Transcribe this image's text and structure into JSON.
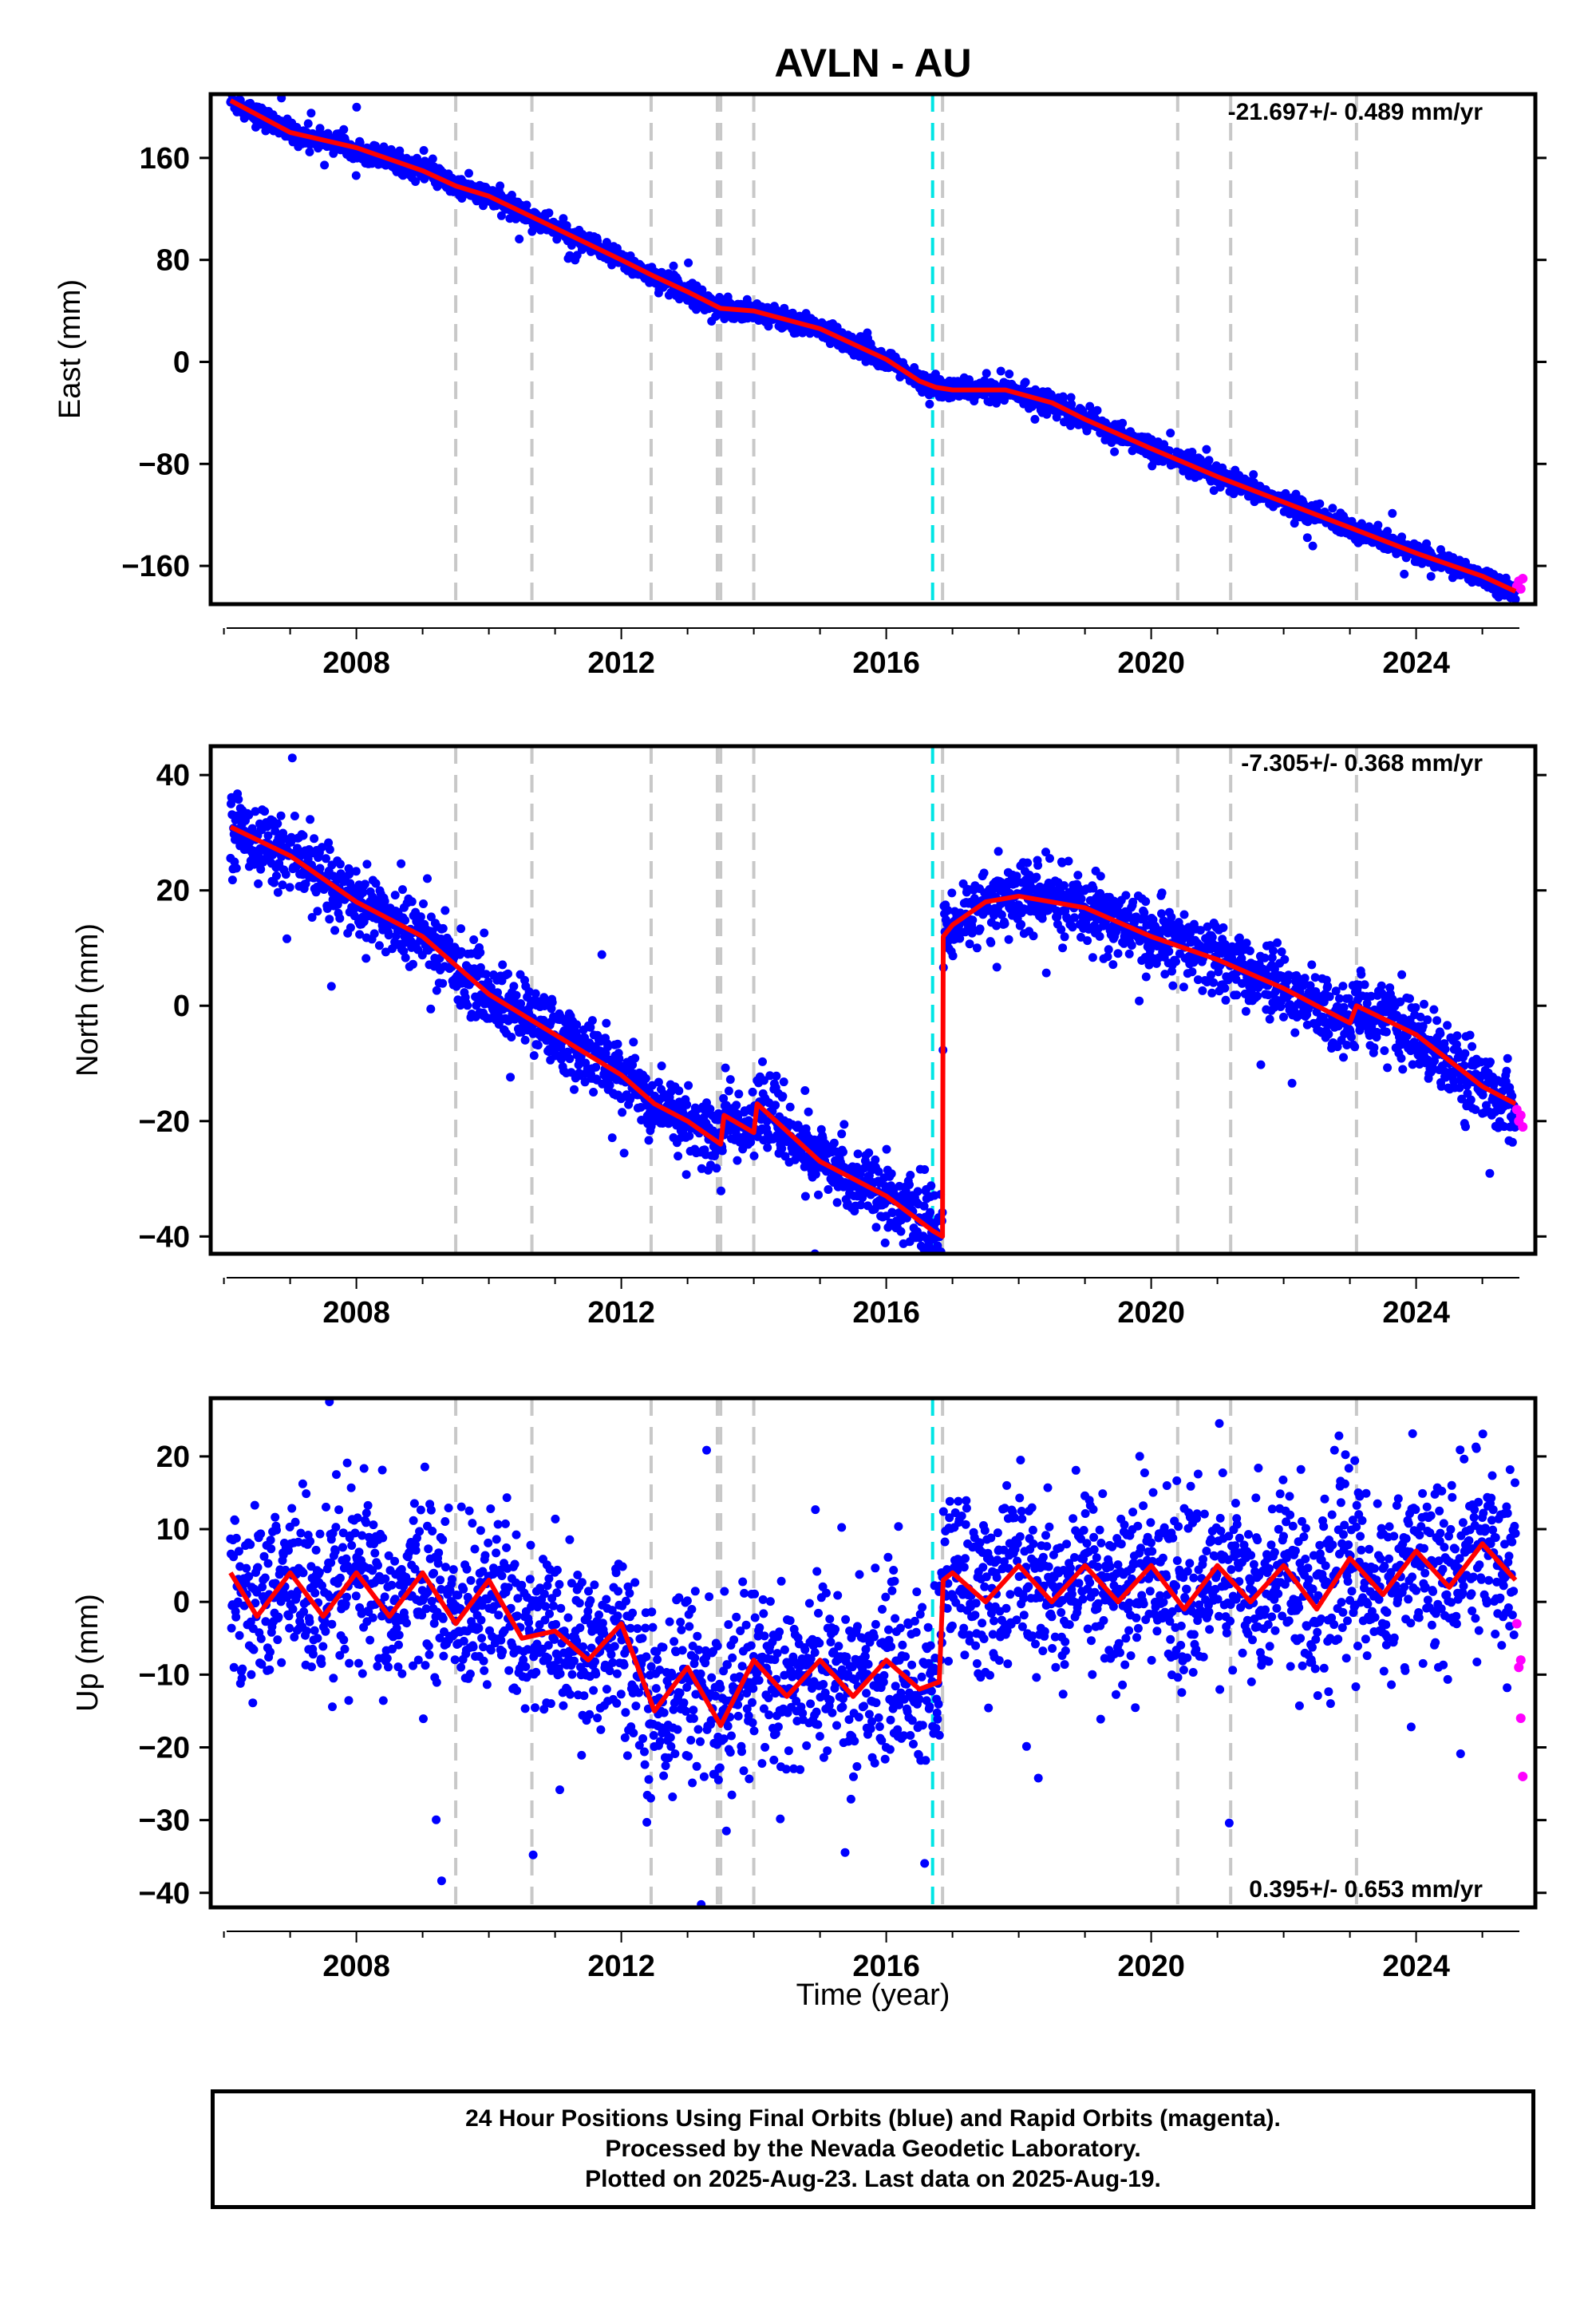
{
  "figure": {
    "title": "AVLN - AU",
    "xlabel": "Time (year)",
    "footer": [
      "24 Hour Positions Using Final Orbits (blue) and Rapid Orbits (magenta).",
      "Processed by the Nevada Geodetic Laboratory.",
      "Plotted on 2025-Aug-23. Last data on 2025-Aug-19."
    ]
  },
  "colors": {
    "final_orbits": "#0000ff",
    "rapid_orbits": "#ff00ff",
    "model_fit": "#ff0000",
    "equipment_change": "#c8c8c8",
    "earthquake": "#00e5e5",
    "frame": "#000000"
  },
  "chart_data": [
    {
      "type": "scatter",
      "component": "East",
      "ylabel": "East (mm)",
      "rate_label": "-21.697+/- 0.489 mm/yr",
      "xlim": [
        2005.8,
        2025.8
      ],
      "ylim": [
        -190,
        210
      ],
      "xticks": [
        2008,
        2012,
        2016,
        2020,
        2024
      ],
      "yticks": [
        -160,
        -80,
        0,
        80,
        160
      ],
      "grid": false,
      "trend_points": [
        [
          2006.1,
          205
        ],
        [
          2007.0,
          180
        ],
        [
          2008.0,
          168
        ],
        [
          2009.0,
          150
        ],
        [
          2009.5,
          138
        ],
        [
          2010.0,
          130
        ],
        [
          2011.0,
          105
        ],
        [
          2012.0,
          80
        ],
        [
          2012.5,
          67
        ],
        [
          2013.0,
          55
        ],
        [
          2013.5,
          42
        ],
        [
          2014.0,
          40
        ],
        [
          2015.0,
          26
        ],
        [
          2016.0,
          2
        ],
        [
          2016.5,
          -15
        ],
        [
          2016.75,
          -20
        ],
        [
          2017.0,
          -22
        ],
        [
          2017.8,
          -22
        ],
        [
          2018.5,
          -32
        ],
        [
          2019.0,
          -45
        ],
        [
          2020.0,
          -68
        ],
        [
          2021.0,
          -90
        ],
        [
          2022.0,
          -110
        ],
        [
          2023.0,
          -130
        ],
        [
          2024.0,
          -150
        ],
        [
          2025.0,
          -168
        ],
        [
          2025.5,
          -180
        ]
      ],
      "scatter_spread": 4,
      "rapid_points": [
        [
          2025.52,
          -176
        ],
        [
          2025.55,
          -172
        ],
        [
          2025.58,
          -178
        ],
        [
          2025.61,
          -170
        ]
      ]
    },
    {
      "type": "scatter",
      "component": "North",
      "ylabel": "North (mm)",
      "rate_label": "-7.305+/- 0.368 mm/yr",
      "xlim": [
        2005.8,
        2025.8
      ],
      "ylim": [
        -43,
        45
      ],
      "xticks": [
        2008,
        2012,
        2016,
        2020,
        2024
      ],
      "yticks": [
        -40,
        -20,
        0,
        20,
        40
      ],
      "grid": false,
      "trend_points": [
        [
          2006.1,
          31
        ],
        [
          2007.0,
          26
        ],
        [
          2008.0,
          18
        ],
        [
          2009.0,
          12
        ],
        [
          2009.5,
          7
        ],
        [
          2010.0,
          2
        ],
        [
          2011.0,
          -5
        ],
        [
          2012.0,
          -12
        ],
        [
          2012.5,
          -17
        ],
        [
          2013.0,
          -20
        ],
        [
          2013.5,
          -24
        ],
        [
          2013.55,
          -19
        ],
        [
          2014.0,
          -22
        ],
        [
          2014.05,
          -17
        ],
        [
          2015.0,
          -27
        ],
        [
          2016.0,
          -33
        ],
        [
          2016.7,
          -39
        ],
        [
          2016.85,
          -40
        ],
        [
          2016.86,
          12
        ],
        [
          2017.0,
          14
        ],
        [
          2017.5,
          18
        ],
        [
          2018.0,
          19
        ],
        [
          2019.0,
          17
        ],
        [
          2020.0,
          12
        ],
        [
          2021.0,
          8
        ],
        [
          2022.0,
          3
        ],
        [
          2023.0,
          -3
        ],
        [
          2023.1,
          0
        ],
        [
          2024.0,
          -5
        ],
        [
          2025.0,
          -14
        ],
        [
          2025.5,
          -17
        ]
      ],
      "scatter_spread": 3,
      "rapid_points": [
        [
          2025.52,
          -18
        ],
        [
          2025.55,
          -20
        ],
        [
          2025.58,
          -19
        ],
        [
          2025.61,
          -21
        ]
      ]
    },
    {
      "type": "scatter",
      "component": "Up",
      "ylabel": "Up (mm)",
      "rate_label": "0.395+/- 0.653 mm/yr",
      "xlim": [
        2005.8,
        2025.8
      ],
      "ylim": [
        -42,
        28
      ],
      "xticks": [
        2008,
        2012,
        2016,
        2020,
        2024
      ],
      "yticks": [
        -40,
        -30,
        -20,
        -10,
        0,
        10,
        20
      ],
      "grid": false,
      "trend_points": [
        [
          2006.1,
          4
        ],
        [
          2006.5,
          -2
        ],
        [
          2007.0,
          4
        ],
        [
          2007.5,
          -2
        ],
        [
          2008.0,
          4
        ],
        [
          2008.5,
          -2
        ],
        [
          2009.0,
          4
        ],
        [
          2009.5,
          -3
        ],
        [
          2010.0,
          3
        ],
        [
          2010.5,
          -5
        ],
        [
          2011.0,
          -4
        ],
        [
          2011.5,
          -8
        ],
        [
          2012.0,
          -3
        ],
        [
          2012.5,
          -15
        ],
        [
          2013.0,
          -9
        ],
        [
          2013.5,
          -17
        ],
        [
          2014.0,
          -8
        ],
        [
          2014.5,
          -13
        ],
        [
          2015.0,
          -8
        ],
        [
          2015.5,
          -13
        ],
        [
          2016.0,
          -8
        ],
        [
          2016.5,
          -12
        ],
        [
          2016.8,
          -11
        ],
        [
          2016.86,
          3
        ],
        [
          2017.0,
          4
        ],
        [
          2017.5,
          0
        ],
        [
          2018.0,
          5
        ],
        [
          2018.5,
          0
        ],
        [
          2019.0,
          5
        ],
        [
          2019.5,
          0
        ],
        [
          2020.0,
          5
        ],
        [
          2020.5,
          -1
        ],
        [
          2021.0,
          5
        ],
        [
          2021.5,
          0
        ],
        [
          2022.0,
          5
        ],
        [
          2022.5,
          -1
        ],
        [
          2023.0,
          6
        ],
        [
          2023.5,
          1
        ],
        [
          2024.0,
          7
        ],
        [
          2024.5,
          2
        ],
        [
          2025.0,
          8
        ],
        [
          2025.5,
          3
        ]
      ],
      "scatter_spread": 6,
      "rapid_points": [
        [
          2025.52,
          -3
        ],
        [
          2025.55,
          -9
        ],
        [
          2025.58,
          -16
        ],
        [
          2025.61,
          -24
        ],
        [
          2025.58,
          -8
        ]
      ]
    }
  ],
  "event_lines": {
    "equipment_changes": [
      2009.5,
      2010.65,
      2012.45,
      2013.45,
      2013.5,
      2014.0,
      2016.85,
      2020.4,
      2021.2,
      2023.1
    ],
    "earthquakes": [
      2016.7
    ]
  }
}
